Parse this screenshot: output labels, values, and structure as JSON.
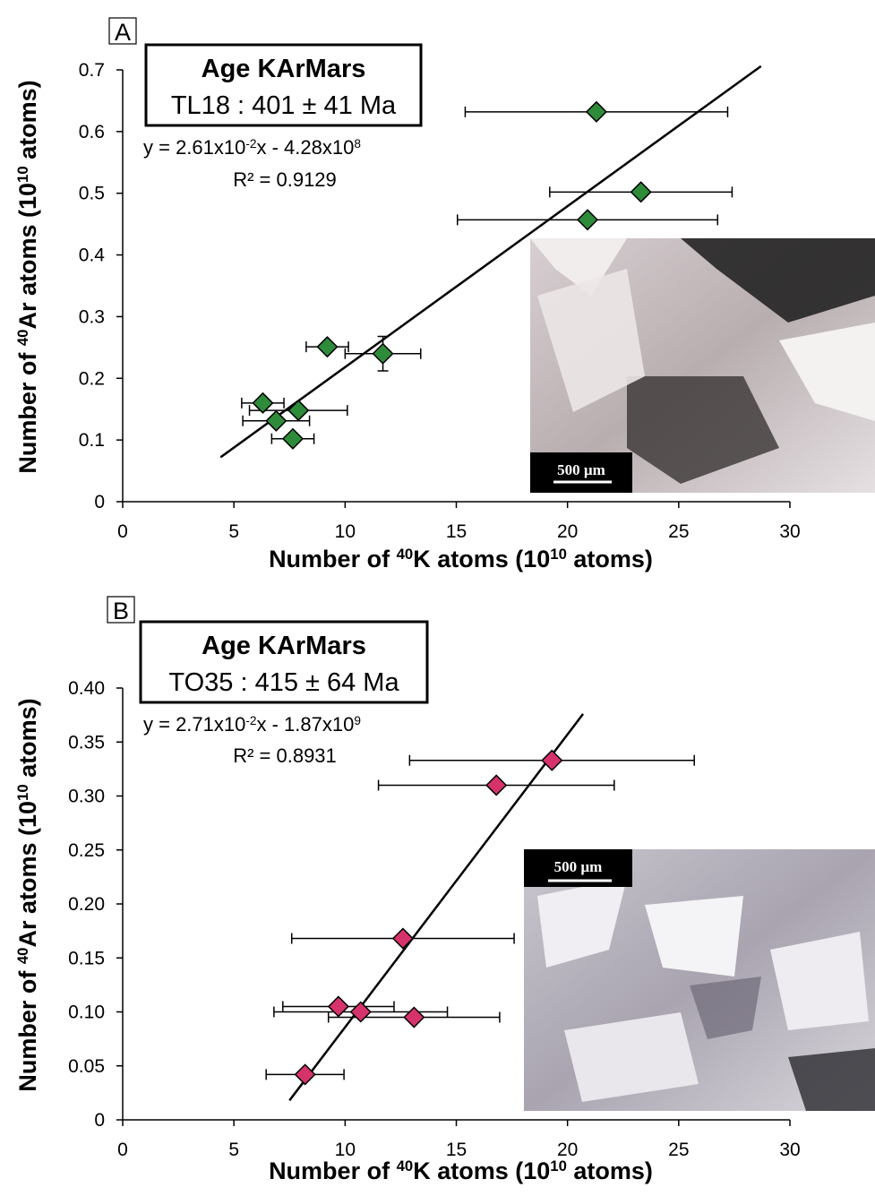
{
  "chart_data": [
    {
      "type": "scatter",
      "panel": "A",
      "box_title": "Age KArMars",
      "box_subtitle": "TL18 : 401 ± 41 Ma",
      "equation": [
        "y = 2.61x10",
        "-2",
        "x - 4.28x10",
        "8"
      ],
      "r_squared": "R² = 0.9129",
      "xlabel": [
        "Number of ",
        "40",
        "K atoms (10",
        "10",
        " atoms)"
      ],
      "ylabel": [
        "Number of ",
        "40",
        "Ar atoms (10",
        "10",
        " atoms)"
      ],
      "xlim": [
        0,
        30
      ],
      "xticks": [
        0,
        5,
        10,
        15,
        20,
        25,
        30
      ],
      "ylim": [
        0,
        0.7
      ],
      "yticks": [
        0,
        0.1,
        0.2,
        0.3,
        0.4,
        0.5,
        0.6,
        0.7
      ],
      "color": "#2e8b3a",
      "x": [
        21.3,
        23.3,
        20.9,
        9.2,
        11.7,
        6.3,
        7.9,
        6.9,
        7.65
      ],
      "values": [
        0.632,
        0.502,
        0.457,
        0.251,
        0.24,
        0.16,
        0.148,
        0.131,
        0.102
      ],
      "xerr": [
        5.9,
        4.1,
        5.85,
        0.95,
        1.7,
        0.95,
        2.2,
        1.5,
        0.95
      ],
      "yerr": [
        null,
        null,
        null,
        null,
        0.028,
        null,
        null,
        null,
        null
      ],
      "trendline": {
        "x": [
          4.4,
          28.7
        ],
        "y": [
          0.072,
          0.706
        ]
      },
      "scale_bar_label": "500 µm"
    },
    {
      "type": "scatter",
      "panel": "B",
      "box_title": "Age KArMars",
      "box_subtitle": "TO35 : 415 ± 64 Ma",
      "equation": [
        "y = 2.71x10",
        "-2",
        "x - 1.87x10",
        "9"
      ],
      "r_squared": "R² = 0.8931",
      "xlabel": [
        "Number of ",
        "40",
        "K atoms (10",
        "10",
        " atoms)"
      ],
      "ylabel": [
        "Number of ",
        "40",
        "Ar atoms (10",
        "10",
        " atoms)"
      ],
      "xlim": [
        0,
        30
      ],
      "xticks": [
        0,
        5,
        10,
        15,
        20,
        25,
        30
      ],
      "ylim": [
        0,
        0.4
      ],
      "yticks": [
        0,
        0.05,
        {
          "value": 0.1,
          "label": "0.10"
        },
        0.15,
        {
          "value": 0.2,
          "label": "0.20"
        },
        0.25,
        {
          "value": 0.3,
          "label": "0.30"
        },
        0.35,
        {
          "value": 0.4,
          "label": "0.40"
        }
      ],
      "color": "#d6336c",
      "x": [
        19.3,
        16.8,
        12.6,
        9.7,
        10.7,
        13.1,
        8.2
      ],
      "values": [
        0.333,
        0.31,
        0.168,
        0.105,
        0.1,
        0.095,
        0.042
      ],
      "xerr": [
        6.4,
        5.3,
        5.0,
        2.5,
        3.9,
        3.85,
        1.75
      ],
      "yerr": [
        null,
        null,
        null,
        null,
        null,
        null,
        null
      ],
      "trendline": {
        "x": [
          7.5,
          20.7
        ],
        "y": [
          0.018,
          0.376
        ]
      },
      "scale_bar_label": "500 µm"
    }
  ]
}
